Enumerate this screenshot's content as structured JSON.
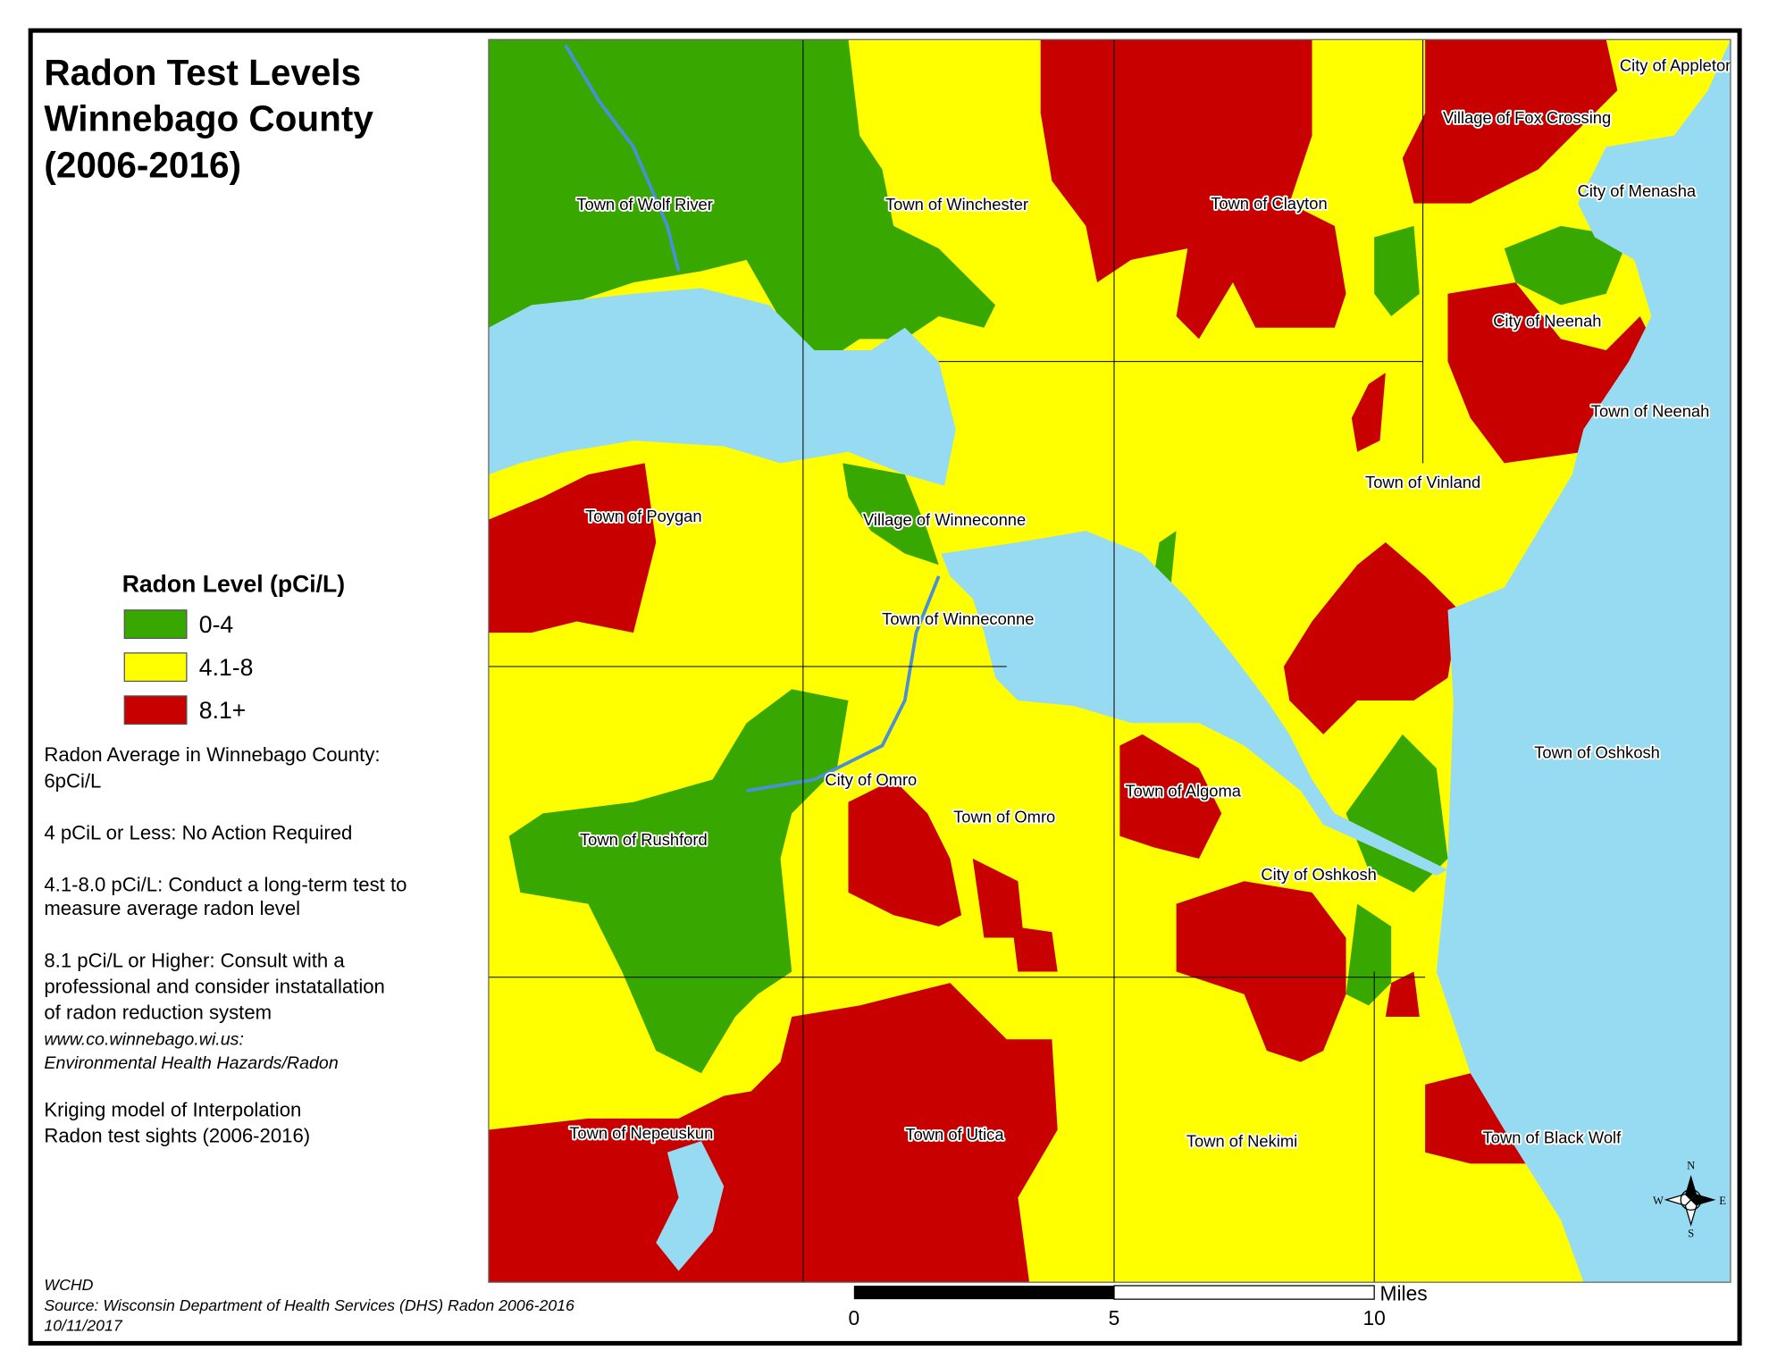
{
  "header": {
    "title": [
      "Radon Test Levels",
      "Winnebago County",
      "(2006-2016)"
    ]
  },
  "legend": {
    "title": "Radon Level (pCi/L)",
    "items": [
      {
        "label": "0-4",
        "color": "#38a800"
      },
      {
        "label": "4.1-8",
        "color": "#ffff00"
      },
      {
        "label": "8.1+",
        "color": "#c80000"
      }
    ]
  },
  "notes": [
    "Radon Average in Winnebago County:",
    "6pCi/L",
    "4 pCiL or Less:  No Action Required",
    "4.1-8.0 pCi/L: Conduct a long-term test to",
    "measure average radon level",
    "8.1 pCi/L or Higher: Consult with a",
    "professional and consider instatallation",
    "of radon reduction system"
  ],
  "links": [
    "www.co.winnebago.wi.us:",
    "Environmental Health Hazards/Radon"
  ],
  "method": [
    "Kriging model of Interpolation",
    "Radon test sights (2006-2016)"
  ],
  "credits": [
    "WCHD",
    "Source: Wisconsin Department of Health Services (DHS) Radon 2006-2016",
    "10/11/2017"
  ],
  "map": {
    "labels": [
      "Town of Wolf River",
      "Town of Winchester",
      "Town of Clayton",
      "City of Appleton",
      "Village of Fox Crossing",
      "City of Menasha",
      "City of Neenah",
      "Town of Neenah",
      "Town of Vinland",
      "Town of Poygan",
      "Village of Winneconne",
      "Town of Winneconne",
      "Town of Oshkosh",
      "City of Omro",
      "Town of Algoma",
      "Town of Omro",
      "Town of Rushford",
      "City of Oshkosh",
      "Town of Nepeuskun",
      "Town of Utica",
      "Town of Nekimi",
      "Town of Black Wolf"
    ]
  },
  "scale_bar": {
    "unit": "Miles",
    "ticks": [
      0,
      5,
      10
    ]
  },
  "compass": {
    "n": "N",
    "e": "E",
    "s": "S",
    "w": "W"
  }
}
